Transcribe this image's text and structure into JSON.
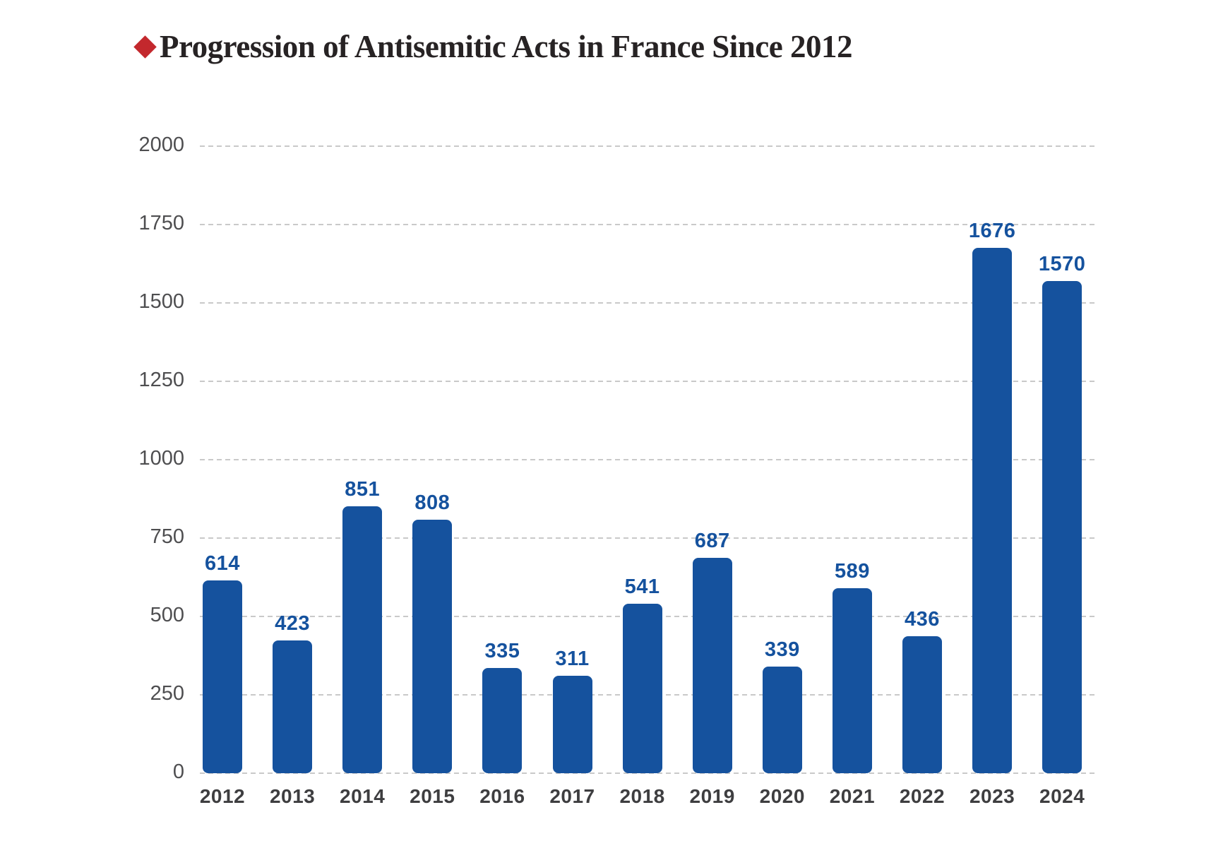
{
  "chart_data": {
    "type": "bar",
    "title": "Progression of Antisemitic Acts in France Since 2012",
    "categories": [
      "2012",
      "2013",
      "2014",
      "2015",
      "2016",
      "2017",
      "2018",
      "2019",
      "2020",
      "2021",
      "2022",
      "2023",
      "2024"
    ],
    "values": [
      614,
      423,
      851,
      808,
      335,
      311,
      541,
      687,
      339,
      589,
      436,
      1676,
      1570
    ],
    "xlabel": "",
    "ylabel": "",
    "ylim": [
      0,
      2000
    ],
    "yticks": [
      2000,
      1750,
      1500,
      1250,
      1000,
      750,
      500,
      250,
      0
    ],
    "grid": "horizontal-dashed",
    "legend_position": "none",
    "bar_color": "#15529e",
    "value_label_color": "#15529e",
    "grid_color": "#c9c9c9",
    "accent_color": "#c3282d",
    "title_color": "#272324"
  }
}
